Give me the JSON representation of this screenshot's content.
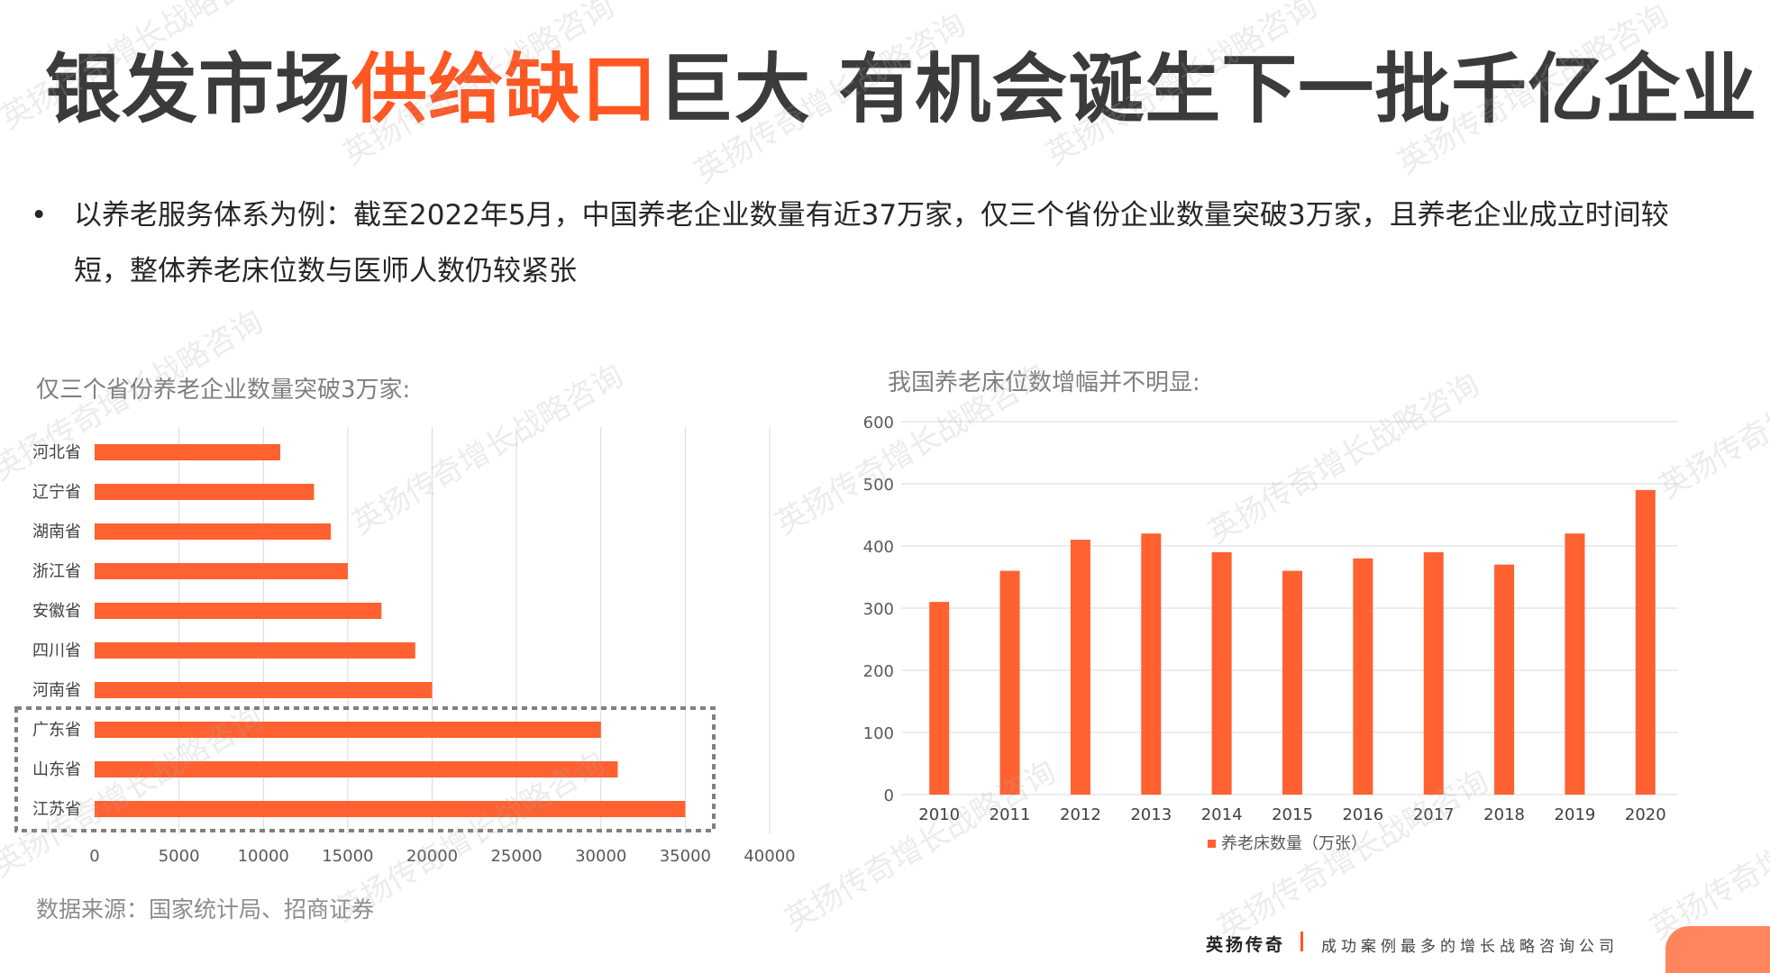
{
  "title": {
    "part1": "银发市场",
    "highlight": "供给缺口",
    "part2": "巨大 有机会诞生下一批千亿企业"
  },
  "bullet": {
    "marker": "•",
    "text": "以养老服务体系为例：截至2022年5月，中国养老企业数量有近37万家，仅三个省份企业数量突破3万家，且养老企业成立时间较短，整体养老床位数与医师人数仍较紧张"
  },
  "watermark": "英扬传奇增长战略咨询",
  "colors": {
    "accent": "#ff5722",
    "bar": "#ff6131",
    "title_text": "#3b3b3b",
    "grid": "#d9d9d9",
    "highlight_box": "#808080"
  },
  "left_chart": {
    "subtitle": "仅三个省份养老企业数量突破3万家:"
  },
  "right_chart": {
    "subtitle": "我国养老床位数增幅并不明显:"
  },
  "chart_data": [
    {
      "type": "bar",
      "orientation": "horizontal",
      "title": "仅三个省份养老企业数量突破3万家:",
      "categories": [
        "河北省",
        "辽宁省",
        "湖南省",
        "浙江省",
        "安徽省",
        "四川省",
        "河南省",
        "广东省",
        "山东省",
        "江苏省"
      ],
      "values": [
        11000,
        13000,
        14000,
        15000,
        17000,
        19000,
        20000,
        30000,
        31000,
        35000
      ],
      "xlim": [
        0,
        40000
      ],
      "xticks": [
        "0",
        "5000",
        "10000",
        "15000",
        "20000",
        "25000",
        "30000",
        "35000",
        "40000"
      ],
      "grid": "vertical",
      "highlighted_categories": [
        "广东省",
        "山东省",
        "江苏省"
      ]
    },
    {
      "type": "bar",
      "orientation": "vertical",
      "title": "我国养老床位数增幅并不明显:",
      "categories": [
        "2010",
        "2011",
        "2012",
        "2013",
        "2014",
        "2015",
        "2016",
        "2017",
        "2018",
        "2019",
        "2020"
      ],
      "series": [
        {
          "name": "养老床数量（万张）",
          "values": [
            310,
            360,
            410,
            420,
            390,
            360,
            380,
            390,
            370,
            420,
            490
          ]
        }
      ],
      "ylim": [
        0,
        600
      ],
      "yticks": [
        "0",
        "100",
        "200",
        "300",
        "400",
        "500",
        "600"
      ],
      "grid": "horizontal",
      "legend": "bottom"
    }
  ],
  "source": "数据来源：国家统计局、招商证券",
  "footer": {
    "brand": "英扬传奇",
    "slogan": "成功案例最多的增长战略咨询公司"
  }
}
